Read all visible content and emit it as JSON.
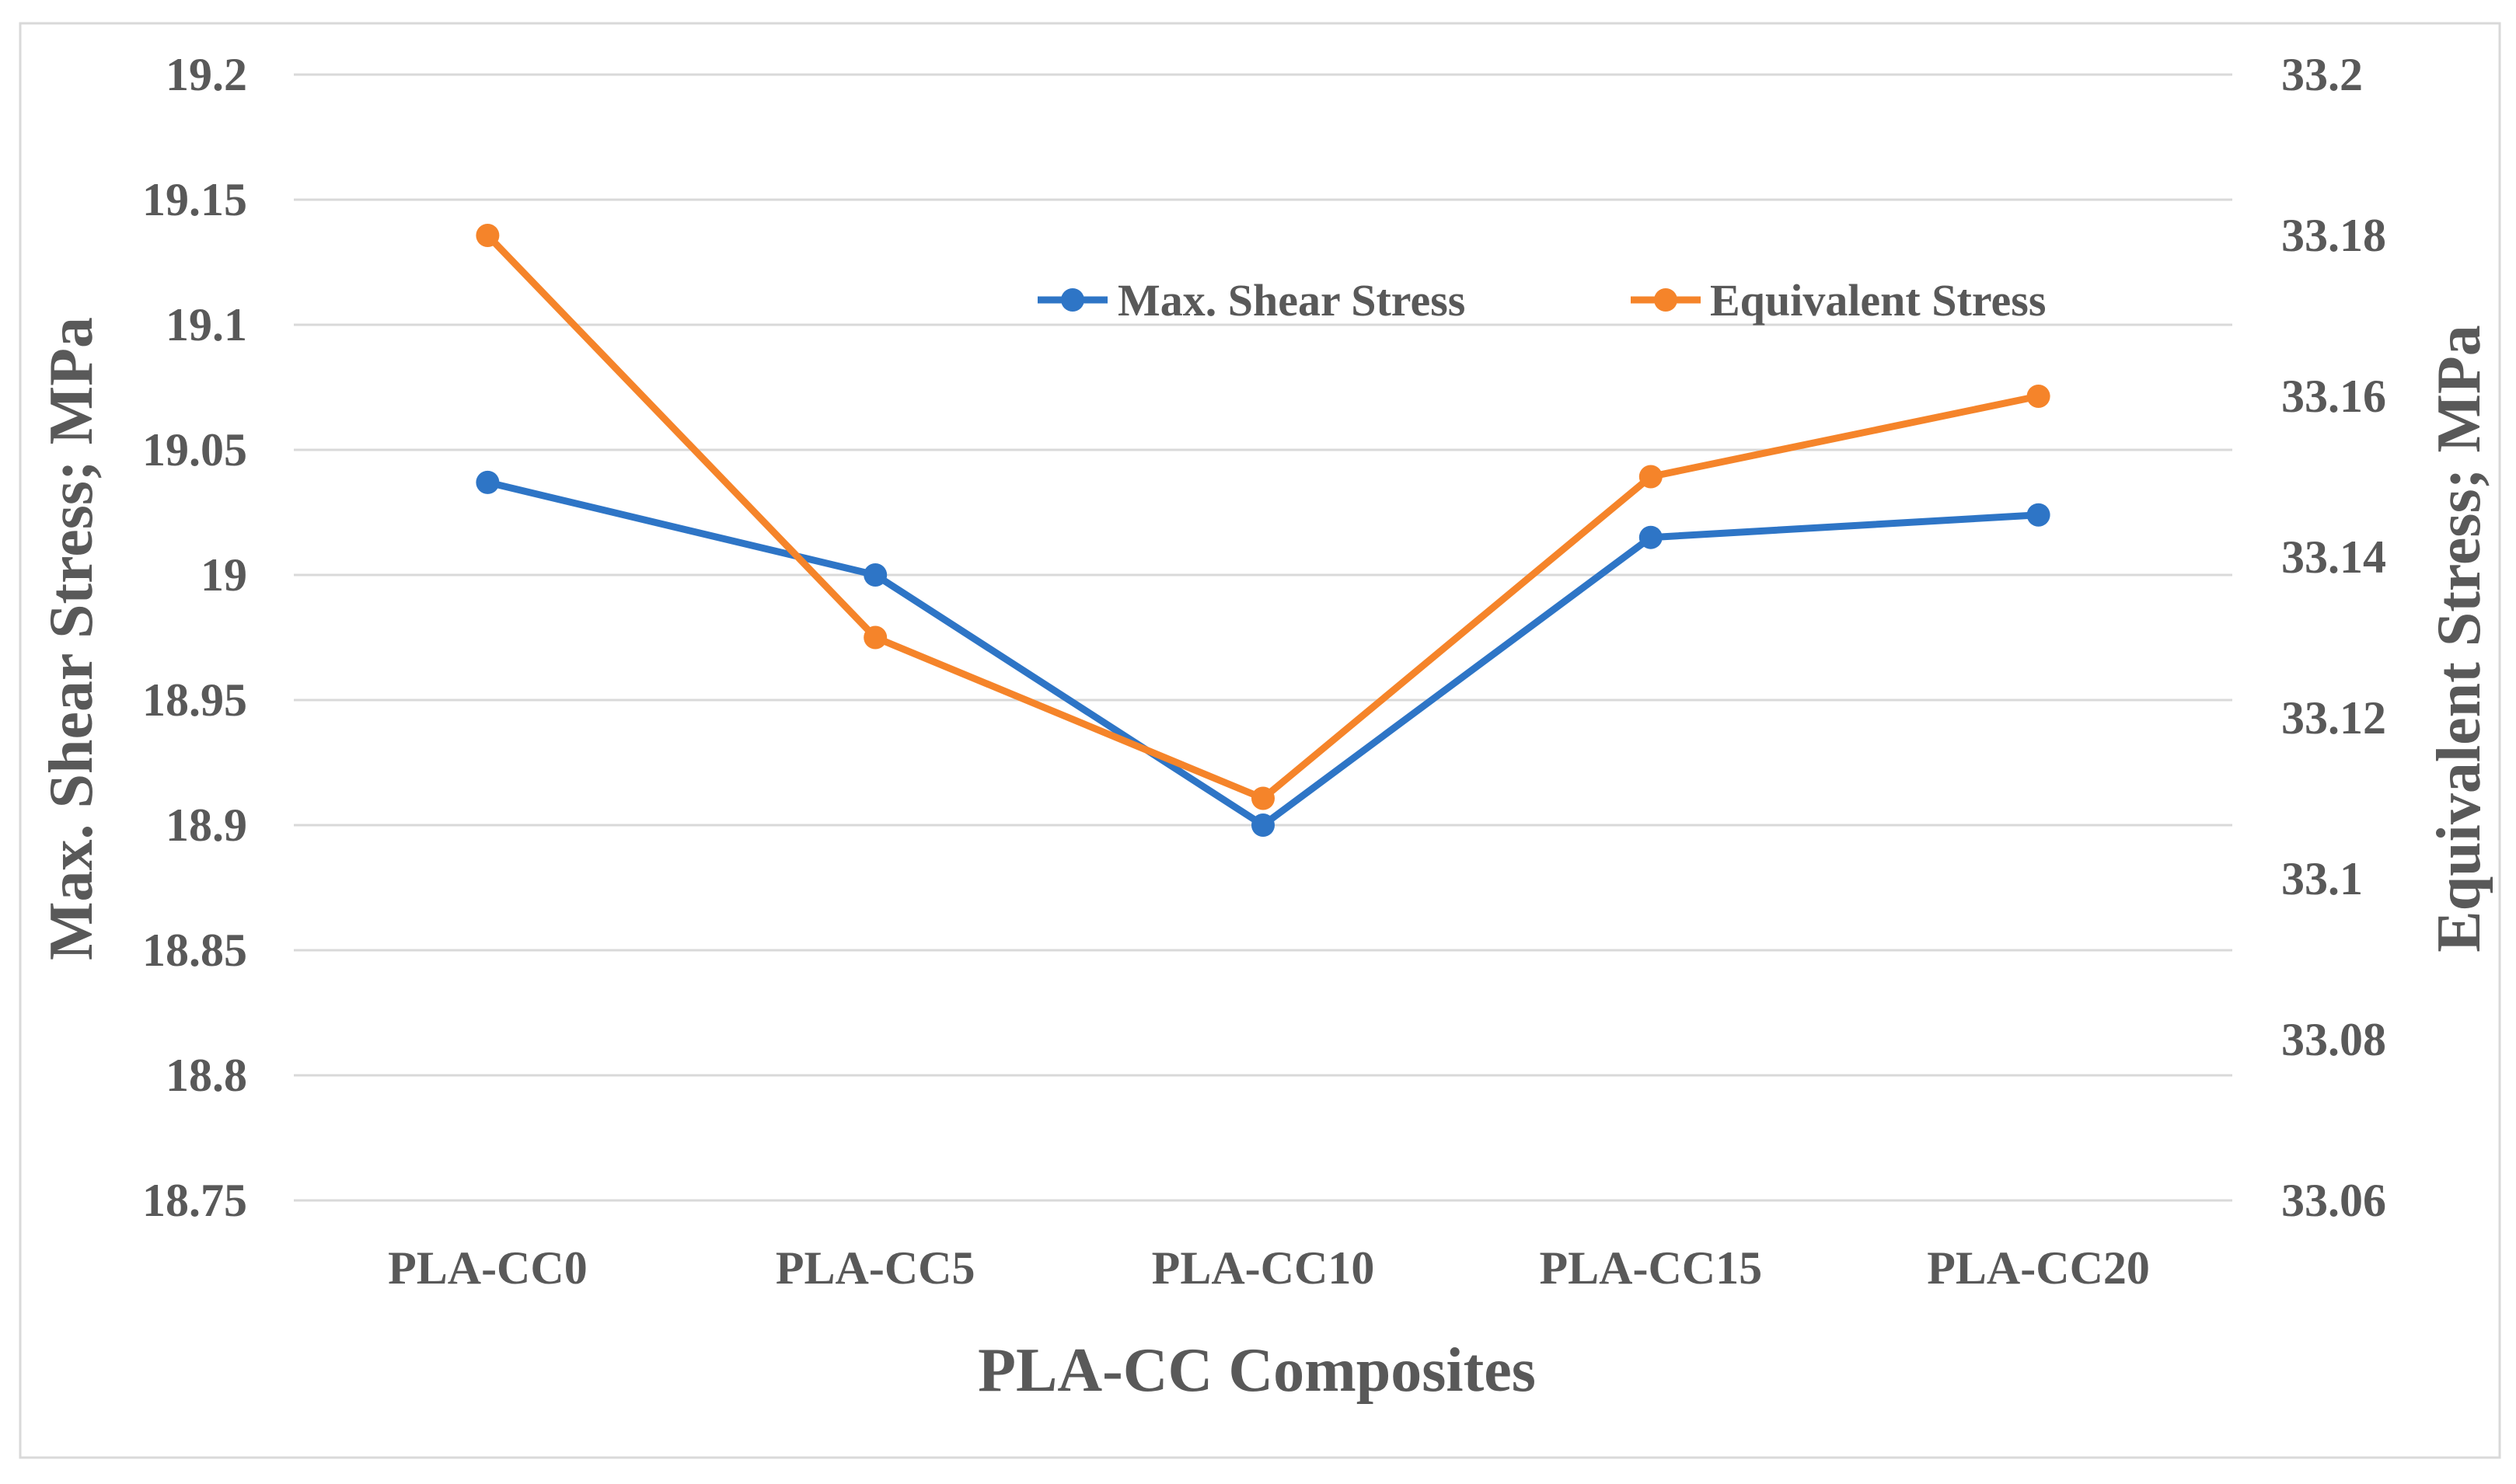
{
  "chart_data": {
    "type": "line",
    "categories": [
      "PLA-CC0",
      "PLA-CC5",
      "PLA-CC10",
      "PLA-CC15",
      "PLA-CC20"
    ],
    "series": [
      {
        "name": "Max. Shear Stress",
        "axis": "left",
        "color": "#2E75C6",
        "values": [
          19.037,
          19.0,
          18.9,
          19.015,
          19.024
        ]
      },
      {
        "name": "Equivalent Stress",
        "axis": "right",
        "color": "#F5842A",
        "values": [
          33.18,
          33.13,
          33.11,
          33.15,
          33.16
        ]
      }
    ],
    "xlabel": "PLA-CC Composites",
    "ylabel_left": "Max. Shear Stress; MPa",
    "ylabel_right": "Equivalent Stress; MPa",
    "ylim_left": [
      18.75,
      19.2
    ],
    "ylim_right": [
      33.06,
      33.2
    ],
    "yticks_left": [
      "18.75",
      "18.8",
      "18.85",
      "18.9",
      "18.95",
      "19",
      "19.05",
      "19.1",
      "19.15",
      "19.2"
    ],
    "yticks_right": [
      "33.06",
      "33.08",
      "33.1",
      "33.12",
      "33.14",
      "33.16",
      "33.18",
      "33.2"
    ],
    "grid": true,
    "legend_position": "top-right"
  }
}
